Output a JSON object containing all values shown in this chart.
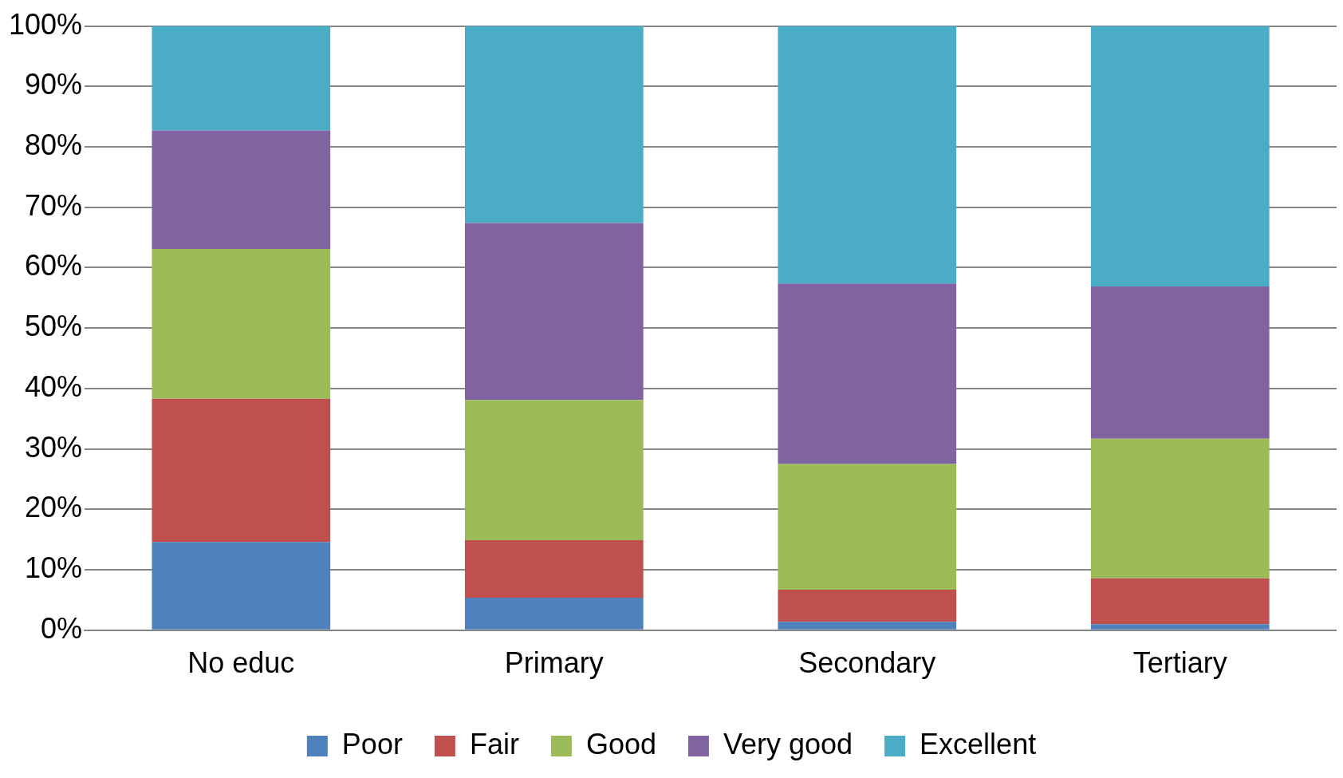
{
  "chart_data": {
    "type": "bar",
    "stacked": true,
    "categories": [
      "No educ",
      "Primary",
      "Secondary",
      "Tertiary"
    ],
    "series": [
      {
        "name": "Poor",
        "color": "#4f81bd",
        "values": [
          14.6,
          5.4,
          1.4,
          1.0
        ]
      },
      {
        "name": "Fair",
        "color": "#c0504d",
        "values": [
          23.7,
          9.5,
          5.3,
          7.6
        ]
      },
      {
        "name": "Good",
        "color": "#9bbb59",
        "values": [
          24.8,
          23.2,
          20.8,
          23.1
        ]
      },
      {
        "name": "Very good",
        "color": "#8064a2",
        "values": [
          19.6,
          29.3,
          29.9,
          25.2
        ]
      },
      {
        "name": "Excellent",
        "color": "#4bacc6",
        "values": [
          17.3,
          32.6,
          42.6,
          43.1
        ]
      }
    ],
    "ylim": [
      0,
      100
    ],
    "yticks": [
      {
        "value": 0,
        "label": "0%"
      },
      {
        "value": 10,
        "label": "10%"
      },
      {
        "value": 20,
        "label": "20%"
      },
      {
        "value": 30,
        "label": "30%"
      },
      {
        "value": 40,
        "label": "40%"
      },
      {
        "value": 50,
        "label": "50%"
      },
      {
        "value": 60,
        "label": "60%"
      },
      {
        "value": 70,
        "label": "70%"
      },
      {
        "value": 80,
        "label": "80%"
      },
      {
        "value": 90,
        "label": "90%"
      },
      {
        "value": 100,
        "label": "100%"
      }
    ],
    "grid": "y",
    "legend": "bottom"
  }
}
